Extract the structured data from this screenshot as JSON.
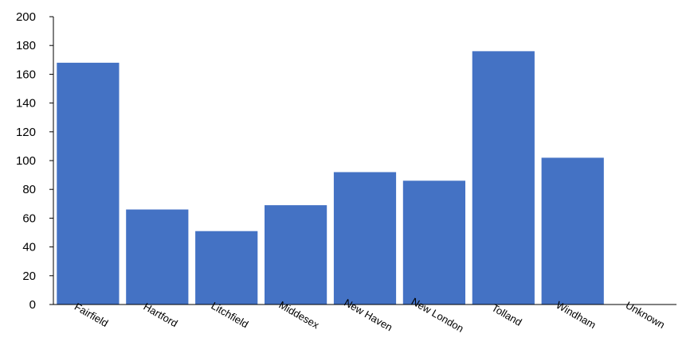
{
  "chart_data": {
    "type": "bar",
    "categories": [
      "Fairfield",
      "Hartford",
      "Litchfield",
      "Middesex",
      "New Haven",
      "New London",
      "Tolland",
      "Windham",
      "Unknown"
    ],
    "values": [
      168,
      66,
      51,
      69,
      92,
      86,
      176,
      102,
      0
    ],
    "ylim": [
      0,
      200
    ],
    "yticks": [
      "0",
      "20",
      "40",
      "60",
      "80",
      "100",
      "120",
      "140",
      "160",
      "180",
      "200"
    ],
    "grid": false,
    "legend": "none",
    "bar_color": "#4472c4",
    "axis_color": "#000000"
  }
}
